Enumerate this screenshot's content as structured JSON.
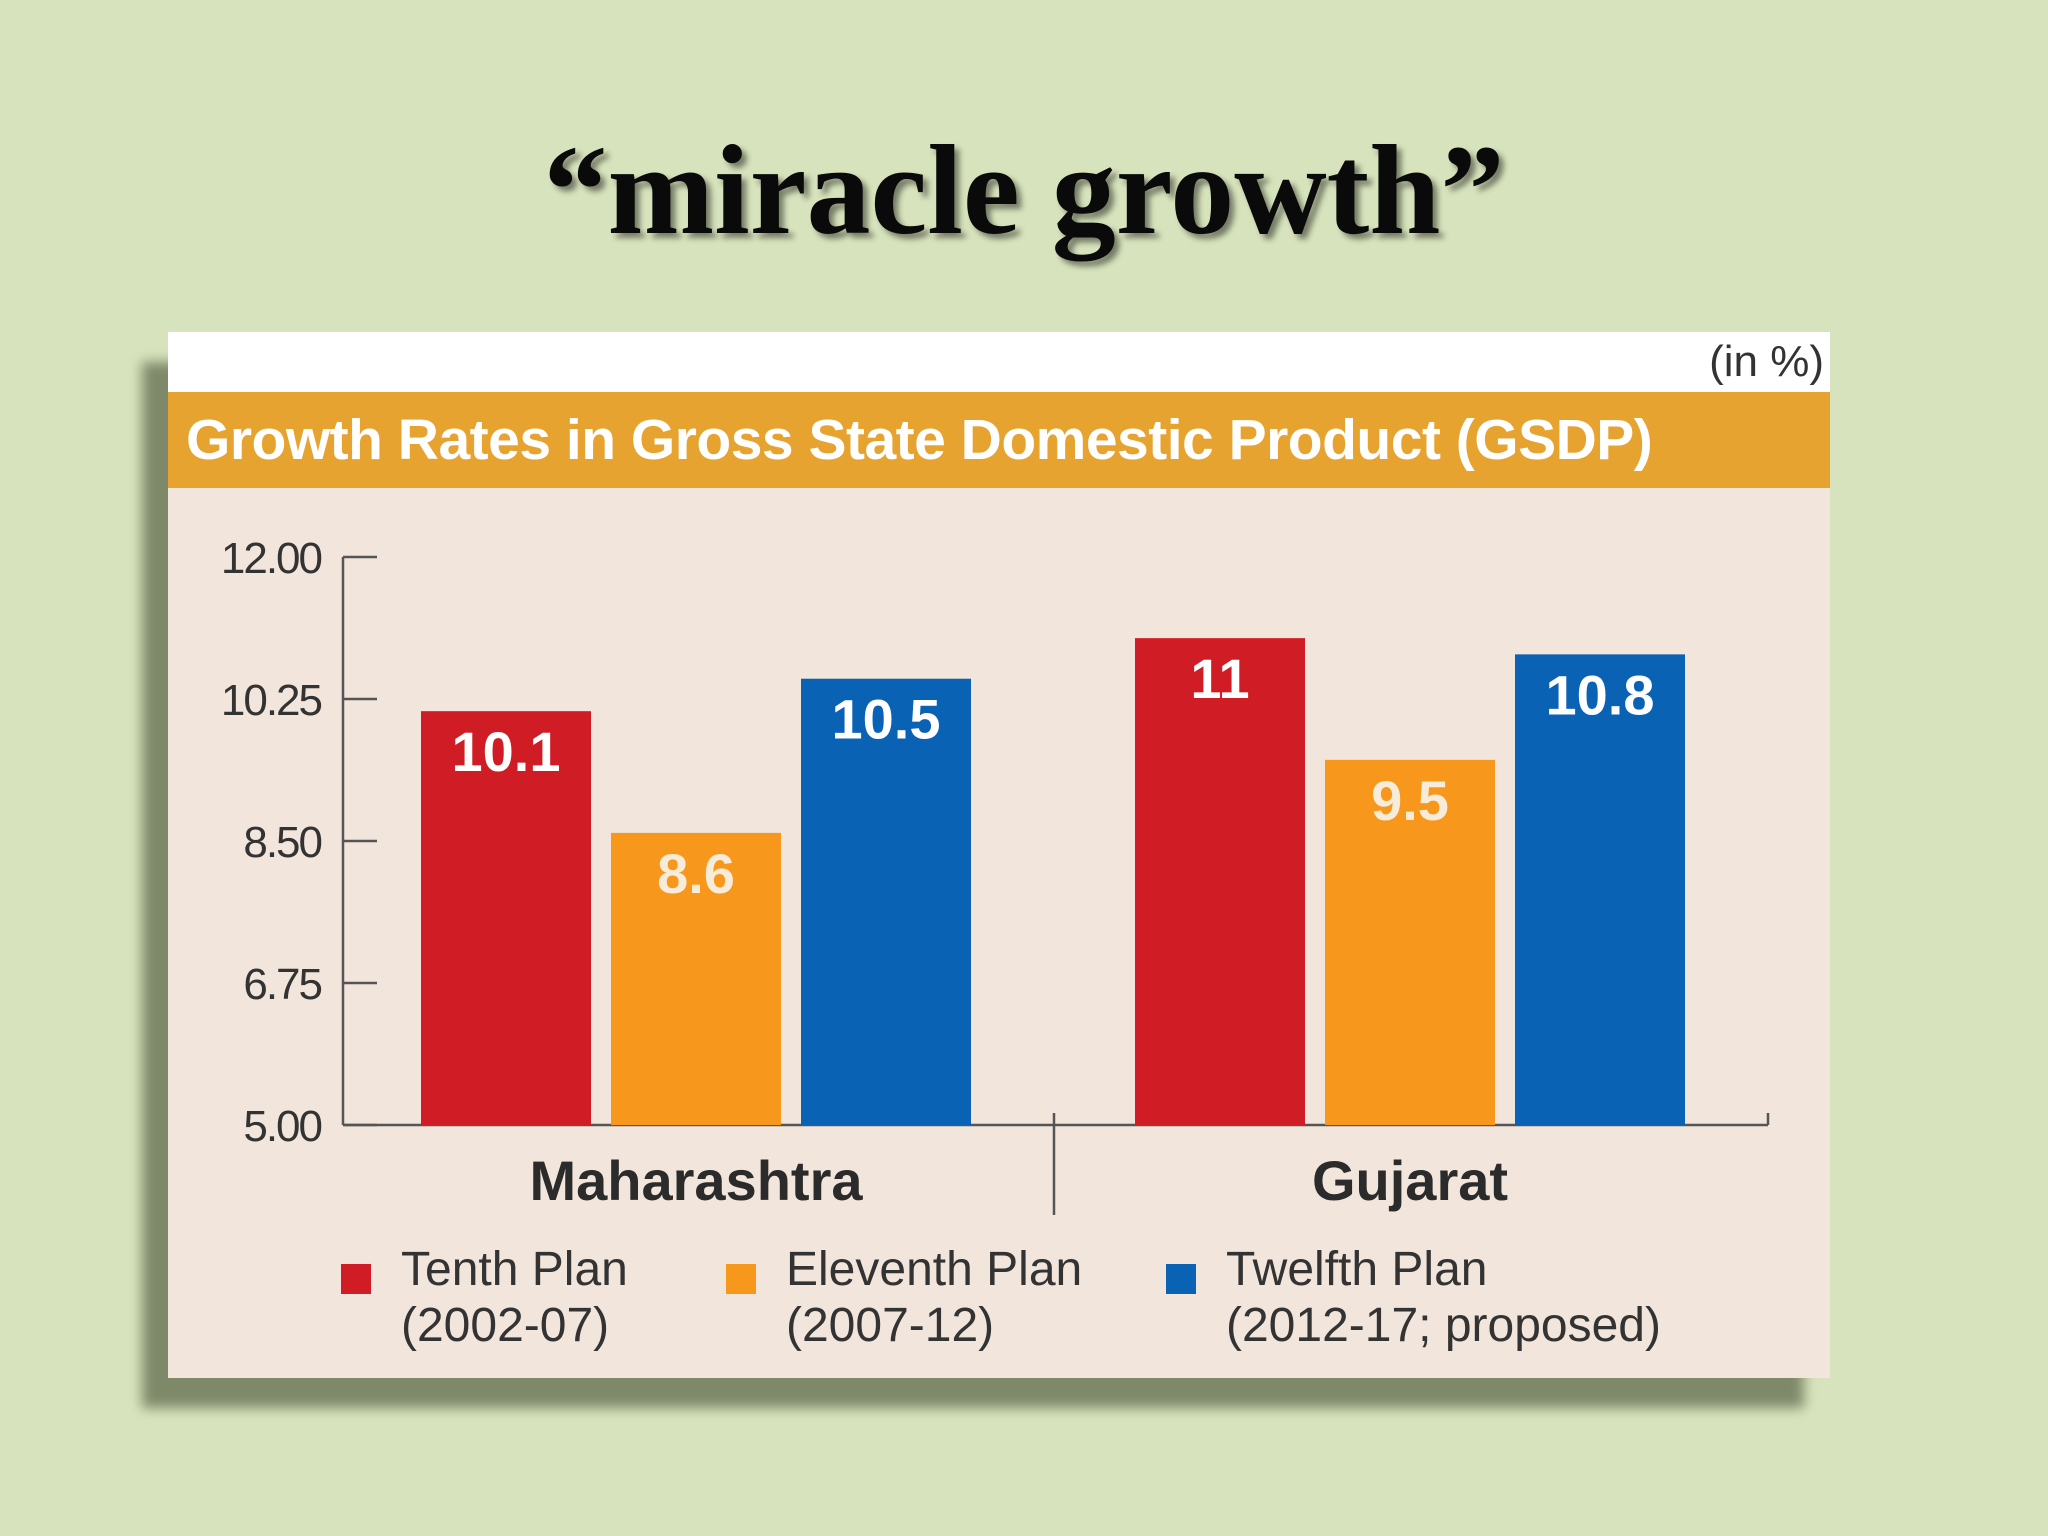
{
  "slide": {
    "title": "“miracle growth”"
  },
  "chart_data": {
    "type": "bar",
    "title": "Growth Rates in Gross State Domestic Product (GSDP)",
    "unit_note": "(in %)",
    "categories": [
      "Maharashtra",
      "Gujarat"
    ],
    "series": [
      {
        "name_line1": "Tenth Plan",
        "name_line2": "(2002-07)",
        "color": "#cf1c25",
        "label_color": "#ffffff",
        "values": [
          10.1,
          11
        ]
      },
      {
        "name_line1": "Eleventh Plan",
        "name_line2": "(2007-12)",
        "color": "#f7981d",
        "label_color": "#f7ecd9",
        "values": [
          8.6,
          9.5
        ]
      },
      {
        "name_line1": "Twelfth Plan",
        "name_line2": "(2012-17; proposed)",
        "color": "#0a62b4",
        "label_color": "#ffffff",
        "values": [
          10.5,
          10.8
        ]
      }
    ],
    "value_labels": [
      [
        "10.1",
        "11"
      ],
      [
        "8.6",
        "9.5"
      ],
      [
        "10.5",
        "10.8"
      ]
    ],
    "ylim": [
      5,
      12
    ],
    "yticks": [
      5,
      6.75,
      8.5,
      10.25,
      12
    ],
    "ytick_labels": [
      "5.00",
      "6.75",
      "8.50",
      "10.25",
      "12.00"
    ],
    "xlabel": "",
    "ylabel": "",
    "legend_position": "bottom",
    "grid": false
  }
}
